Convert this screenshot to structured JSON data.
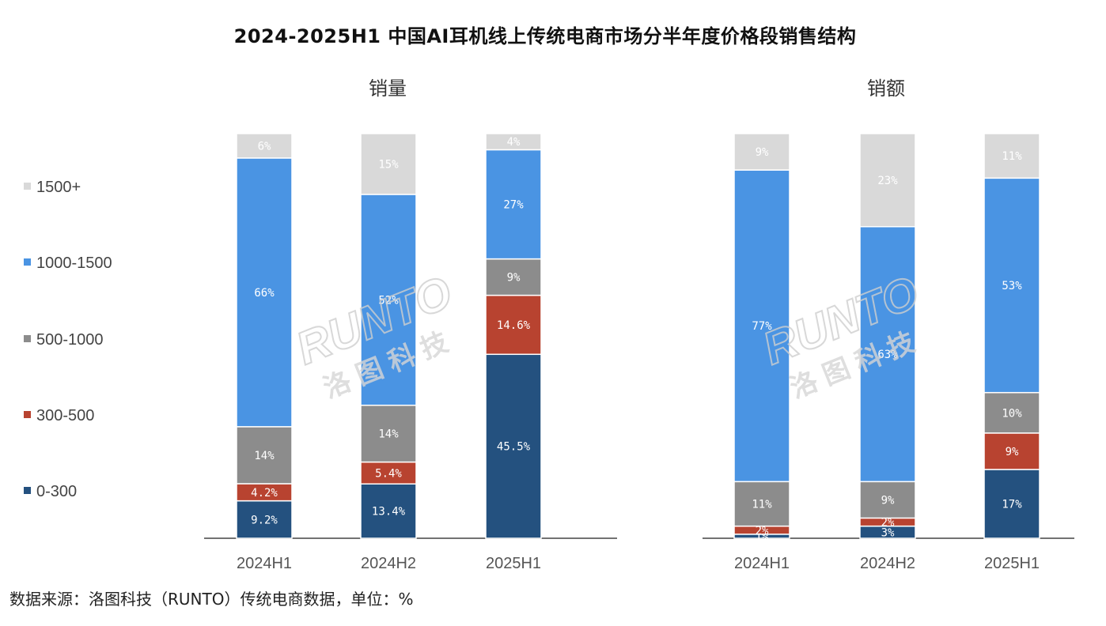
{
  "title": "2024-2025H1 中国AI耳机线上传统电商市场分半年度价格段销售结构",
  "source": "数据来源：洛图科技（RUNTO）传统电商数据，单位：%",
  "watermark": {
    "brand": "RUNTO",
    "cn": "洛图科技"
  },
  "legend": [
    {
      "label": "1500+",
      "color": "#d9d9d9"
    },
    {
      "label": "1000-1500",
      "color": "#4a94e3"
    },
    {
      "label": "500-1000",
      "color": "#8c8c8c"
    },
    {
      "label": "300-500",
      "color": "#b84330"
    },
    {
      "label": "0-300",
      "color": "#24517f"
    }
  ],
  "chart_data": [
    {
      "type": "bar",
      "stacked": true,
      "title": "销量",
      "categories": [
        "2024H1",
        "2024H2",
        "2025H1"
      ],
      "series": [
        {
          "name": "0-300",
          "values": [
            9.2,
            13.4,
            45.5
          ],
          "labels": [
            "9.2%",
            "13.4%",
            "45.5%"
          ]
        },
        {
          "name": "300-500",
          "values": [
            4.2,
            5.4,
            14.6
          ],
          "labels": [
            "4.2%",
            "5.4%",
            "14.6%"
          ]
        },
        {
          "name": "500-1000",
          "values": [
            14,
            14,
            9
          ],
          "labels": [
            "14%",
            "14%",
            "9%"
          ]
        },
        {
          "name": "1000-1500",
          "values": [
            66,
            52,
            27
          ],
          "labels": [
            "66%",
            "52%",
            "27%"
          ]
        },
        {
          "name": "1500+",
          "values": [
            6,
            15,
            4
          ],
          "labels": [
            "6%",
            "15%",
            "4%"
          ]
        }
      ]
    },
    {
      "type": "bar",
      "stacked": true,
      "title": "销额",
      "categories": [
        "2024H1",
        "2024H2",
        "2025H1"
      ],
      "series": [
        {
          "name": "0-300",
          "values": [
            1,
            3,
            17
          ],
          "labels": [
            "1%",
            "3%",
            "17%"
          ]
        },
        {
          "name": "300-500",
          "values": [
            2,
            2,
            9
          ],
          "labels": [
            "2%",
            "2%",
            "9%"
          ]
        },
        {
          "name": "500-1000",
          "values": [
            11,
            9,
            10
          ],
          "labels": [
            "11%",
            "9%",
            "10%"
          ]
        },
        {
          "name": "1000-1500",
          "values": [
            77,
            63,
            53
          ],
          "labels": [
            "77%",
            "63%",
            "53%"
          ]
        },
        {
          "name": "1500+",
          "values": [
            9,
            23,
            11
          ],
          "labels": [
            "9%",
            "23%",
            "11%"
          ]
        }
      ]
    }
  ]
}
